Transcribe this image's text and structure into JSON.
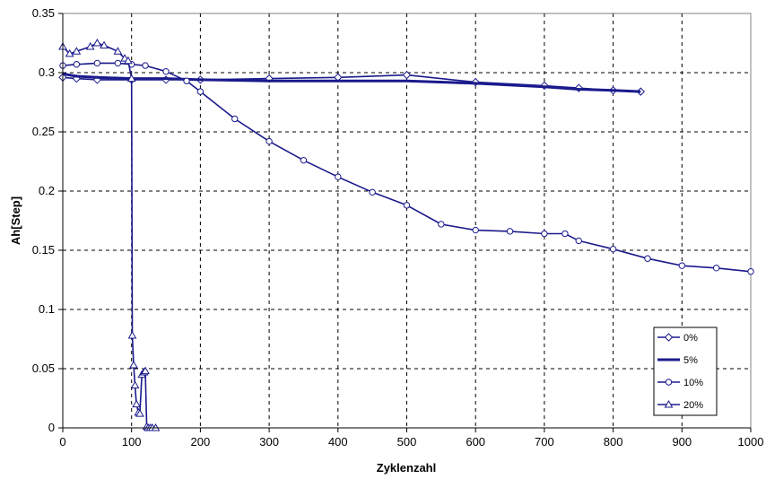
{
  "chart_data": {
    "type": "line",
    "title": "",
    "xlabel": "Zyklenzahl",
    "ylabel": "Ah[Step]",
    "xlim": [
      0,
      1000
    ],
    "ylim": [
      0,
      0.35
    ],
    "x_ticks": [
      0,
      100,
      200,
      300,
      400,
      500,
      600,
      700,
      800,
      900,
      1000
    ],
    "y_ticks": [
      0,
      0.05,
      0.1,
      0.15,
      0.2,
      0.25,
      0.3,
      0.35
    ],
    "x_tick_labels": [
      "0",
      "100",
      "200",
      "300",
      "400",
      "500",
      "600",
      "700",
      "800",
      "900",
      "1000"
    ],
    "y_tick_labels": [
      "0",
      "0.05",
      "0.1",
      "0.15",
      "0.2",
      "0.25",
      "0.3",
      "0.35"
    ],
    "grid": true,
    "legend_position": "bottom-right",
    "color": "#1a1a8c",
    "series": [
      {
        "name": "0%",
        "marker": "diamond",
        "x": [
          0,
          20,
          50,
          100,
          150,
          200,
          300,
          400,
          500,
          600,
          700,
          750,
          800,
          840
        ],
        "y": [
          0.296,
          0.295,
          0.294,
          0.294,
          0.294,
          0.294,
          0.295,
          0.296,
          0.298,
          0.292,
          0.289,
          0.287,
          0.285,
          0.284
        ]
      },
      {
        "name": "5%",
        "marker": "none",
        "x": [
          0,
          20,
          50,
          100,
          150,
          200,
          300,
          400,
          500,
          600,
          700,
          750,
          800,
          840
        ],
        "y": [
          0.299,
          0.297,
          0.296,
          0.295,
          0.295,
          0.294,
          0.293,
          0.293,
          0.293,
          0.291,
          0.288,
          0.286,
          0.285,
          0.284
        ]
      },
      {
        "name": "10%",
        "marker": "circle",
        "x": [
          0,
          20,
          50,
          80,
          100,
          120,
          150,
          180,
          200,
          250,
          300,
          350,
          400,
          450,
          500,
          550,
          600,
          650,
          700,
          730,
          750,
          800,
          850,
          900,
          950,
          1000
        ],
        "y": [
          0.306,
          0.307,
          0.308,
          0.308,
          0.307,
          0.306,
          0.301,
          0.293,
          0.284,
          0.261,
          0.242,
          0.226,
          0.212,
          0.199,
          0.188,
          0.172,
          0.167,
          0.166,
          0.164,
          0.164,
          0.158,
          0.151,
          0.143,
          0.137,
          0.135,
          0.132
        ]
      },
      {
        "name": "20%",
        "marker": "triangle",
        "x": [
          0,
          10,
          20,
          40,
          50,
          60,
          80,
          90,
          95,
          100,
          101,
          103,
          105,
          107,
          110,
          112,
          115,
          118,
          120,
          122,
          124,
          127,
          130,
          135
        ],
        "y": [
          0.322,
          0.316,
          0.318,
          0.322,
          0.325,
          0.323,
          0.318,
          0.312,
          0.31,
          0.295,
          0.078,
          0.053,
          0.036,
          0.02,
          0.013,
          0.012,
          0.045,
          0.047,
          0.048,
          0.001,
          0.0,
          0.0,
          0.0,
          0.0
        ]
      }
    ]
  }
}
